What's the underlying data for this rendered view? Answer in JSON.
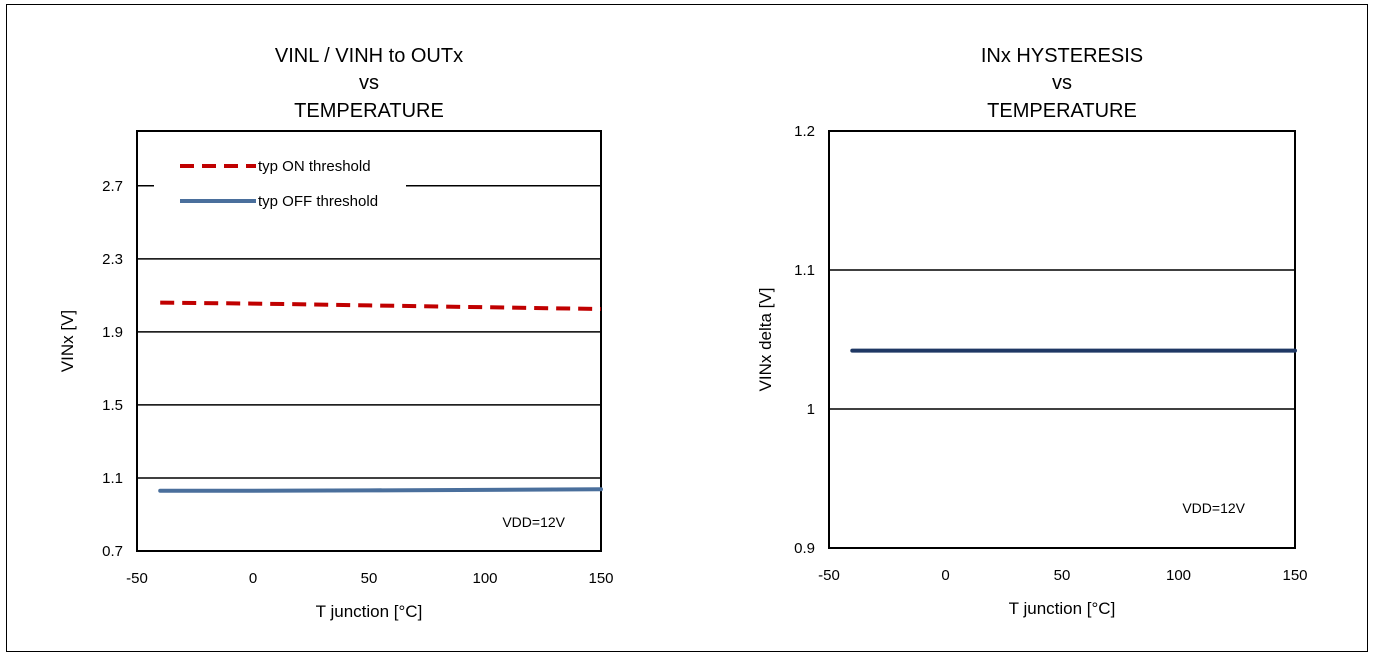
{
  "chart_data": [
    {
      "type": "line",
      "title": [
        "VINL / VINH to OUTx",
        "vs",
        "TEMPERATURE"
      ],
      "xlabel": "T junction  [°C]",
      "ylabel": "VINx [V]",
      "xlim": [
        -50,
        150
      ],
      "ylim": [
        0.7,
        3.0
      ],
      "xticks": [
        "-50",
        "0",
        "50",
        "100",
        "150"
      ],
      "yticks": [
        "0.7",
        "1.1",
        "1.5",
        "1.9",
        "2.3",
        "2.7"
      ],
      "grid": "horizontal",
      "legend_position": "top-left",
      "annotation": "VDD=12V",
      "series": [
        {
          "name": "typ ON threshold",
          "color": "#c00000",
          "style": "dashed",
          "x": [
            -40,
            0,
            50,
            100,
            150
          ],
          "y": [
            2.06,
            2.055,
            2.045,
            2.035,
            2.025
          ]
        },
        {
          "name": "typ OFF threshold",
          "color": "#4a6f9c",
          "style": "solid",
          "x": [
            -40,
            0,
            50,
            100,
            150
          ],
          "y": [
            1.03,
            1.03,
            1.032,
            1.035,
            1.038
          ]
        }
      ]
    },
    {
      "type": "line",
      "title": [
        "INx HYSTERESIS",
        "vs",
        "TEMPERATURE"
      ],
      "xlabel": "T junction  [°C]",
      "ylabel": "VINx delta [V]",
      "xlim": [
        -50,
        150
      ],
      "ylim": [
        0.9,
        1.2
      ],
      "xticks": [
        "-50",
        "0",
        "50",
        "100",
        "150"
      ],
      "yticks": [
        "0.9",
        "1",
        "1.1",
        "1.2"
      ],
      "grid": "horizontal",
      "annotation": "VDD=12V",
      "series": [
        {
          "color": "#1f3864",
          "style": "solid",
          "x": [
            -40,
            0,
            50,
            100,
            150
          ],
          "y": [
            1.042,
            1.042,
            1.042,
            1.042,
            1.042
          ]
        }
      ]
    }
  ]
}
